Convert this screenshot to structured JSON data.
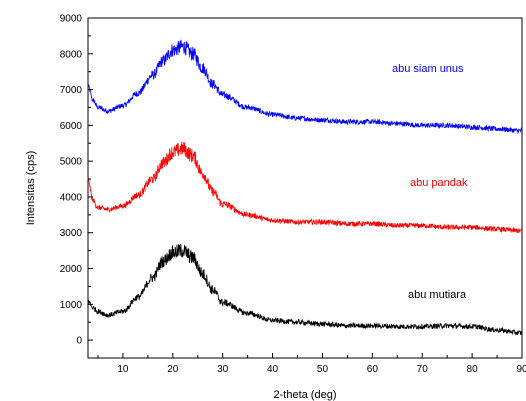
{
  "chart_data": {
    "type": "line",
    "xlabel": "2-theta (deg)",
    "ylabel": "Intensitas (cps)",
    "xlim": [
      3,
      90
    ],
    "ylim": [
      -500,
      9000
    ],
    "xticks": [
      10,
      20,
      30,
      40,
      50,
      60,
      70,
      80,
      90
    ],
    "yticks": [
      0,
      1000,
      2000,
      3000,
      4000,
      5000,
      6000,
      7000,
      8000,
      9000
    ],
    "grid": false,
    "series": [
      {
        "name": "abu siam unus",
        "color": "#0000ff",
        "x": [
          3,
          4,
          5,
          7,
          10,
          13,
          16,
          18,
          20,
          22,
          24,
          26,
          28,
          30,
          35,
          40,
          45,
          50,
          55,
          60,
          65,
          70,
          75,
          80,
          85,
          90
        ],
        "y": [
          7100,
          6700,
          6500,
          6400,
          6550,
          6900,
          7400,
          7800,
          8100,
          8200,
          8000,
          7600,
          7150,
          6850,
          6500,
          6300,
          6200,
          6150,
          6100,
          6100,
          6050,
          6000,
          6000,
          5950,
          5900,
          5850
        ]
      },
      {
        "name": "abu pandak",
        "color": "#ff0000",
        "x": [
          3,
          4,
          5,
          7,
          10,
          13,
          16,
          18,
          20,
          22,
          24,
          26,
          28,
          30,
          35,
          40,
          45,
          50,
          55,
          60,
          65,
          70,
          75,
          80,
          85,
          90
        ],
        "y": [
          4500,
          3900,
          3700,
          3650,
          3750,
          4050,
          4500,
          4950,
          5250,
          5350,
          5150,
          4650,
          4150,
          3800,
          3500,
          3350,
          3300,
          3300,
          3250,
          3250,
          3200,
          3200,
          3150,
          3150,
          3100,
          3050
        ]
      },
      {
        "name": "abu mutiara",
        "color": "#000000",
        "x": [
          3,
          4,
          5,
          7,
          10,
          13,
          16,
          18,
          20,
          22,
          24,
          26,
          28,
          30,
          35,
          40,
          45,
          50,
          55,
          60,
          65,
          70,
          75,
          80,
          85,
          90
        ],
        "y": [
          1100,
          900,
          800,
          700,
          800,
          1200,
          1750,
          2200,
          2450,
          2500,
          2300,
          1850,
          1400,
          1050,
          750,
          550,
          500,
          450,
          400,
          400,
          380,
          380,
          400,
          380,
          280,
          200
        ]
      }
    ]
  }
}
